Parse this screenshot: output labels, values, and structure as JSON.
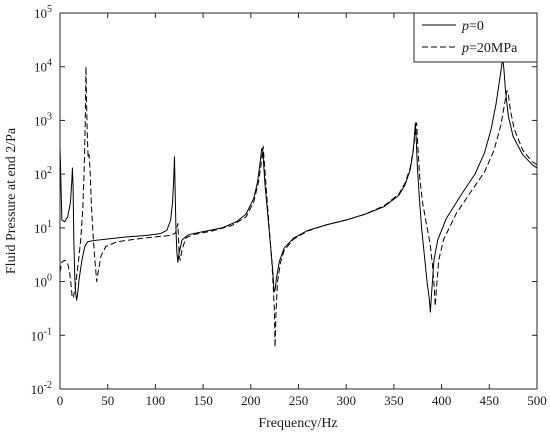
{
  "chart_data": {
    "type": "line",
    "xlabel": "Frequency/Hz",
    "ylabel": "Fluid Pressure at end 2/Pa",
    "xlim": [
      0,
      500
    ],
    "ylim": [
      0.01,
      100000
    ],
    "yscale": "log",
    "grid": false,
    "legend_position": "top-right",
    "x_ticks": [
      0,
      50,
      100,
      150,
      200,
      250,
      300,
      350,
      400,
      450,
      500
    ],
    "y_ticks": [
      {
        "value": 0.01,
        "base": "10",
        "exp": "-2"
      },
      {
        "value": 0.1,
        "base": "10",
        "exp": "-1"
      },
      {
        "value": 1,
        "base": "10",
        "exp": "0"
      },
      {
        "value": 10,
        "base": "10",
        "exp": "1"
      },
      {
        "value": 100,
        "base": "10",
        "exp": "2"
      },
      {
        "value": 1000,
        "base": "10",
        "exp": "3"
      },
      {
        "value": 10000,
        "base": "10",
        "exp": "4"
      },
      {
        "value": 100000,
        "base": "10",
        "exp": "5"
      }
    ],
    "series": [
      {
        "name_var": "p",
        "name_rest": "=0",
        "style": "solid",
        "color": "#000000",
        "points": [
          [
            0,
            300
          ],
          [
            2,
            14
          ],
          [
            5,
            13
          ],
          [
            8,
            16
          ],
          [
            11,
            30
          ],
          [
            12.5,
            80
          ],
          [
            13,
            130
          ],
          [
            13.7,
            60
          ],
          [
            14.5,
            6
          ],
          [
            15.5,
            1.2
          ],
          [
            16.5,
            0.6
          ],
          [
            17.5,
            0.45
          ],
          [
            18.5,
            0.6
          ],
          [
            20,
            1.1
          ],
          [
            23,
            2.5
          ],
          [
            26,
            4.5
          ],
          [
            29,
            5.5
          ],
          [
            35,
            5.8
          ],
          [
            50,
            6.2
          ],
          [
            70,
            6.8
          ],
          [
            90,
            7.2
          ],
          [
            105,
            7.8
          ],
          [
            112,
            9
          ],
          [
            116,
            14
          ],
          [
            118,
            30
          ],
          [
            119.2,
            80
          ],
          [
            120,
            210
          ],
          [
            120.6,
            60
          ],
          [
            121.5,
            10
          ],
          [
            122.5,
            3.5
          ],
          [
            123.5,
            2.3
          ],
          [
            125,
            3.5
          ],
          [
            128,
            6
          ],
          [
            135,
            7.5
          ],
          [
            150,
            8.5
          ],
          [
            170,
            10
          ],
          [
            185,
            13
          ],
          [
            195,
            18
          ],
          [
            203,
            35
          ],
          [
            207,
            70
          ],
          [
            209.5,
            150
          ],
          [
            211.5,
            300
          ],
          [
            212.5,
            280
          ],
          [
            213.5,
            150
          ],
          [
            215,
            60
          ],
          [
            217,
            25
          ],
          [
            219,
            10
          ],
          [
            221,
            4
          ],
          [
            223,
            1.6
          ],
          [
            224.5,
            0.65
          ],
          [
            225.5,
            0.7
          ],
          [
            227,
            1.2
          ],
          [
            230,
            2.4
          ],
          [
            235,
            4.2
          ],
          [
            245,
            6.5
          ],
          [
            260,
            9
          ],
          [
            280,
            11.5
          ],
          [
            300,
            14
          ],
          [
            320,
            18
          ],
          [
            340,
            25
          ],
          [
            355,
            40
          ],
          [
            362,
            65
          ],
          [
            367,
            120
          ],
          [
            370,
            250
          ],
          [
            371.5,
            500
          ],
          [
            372.5,
            900
          ],
          [
            373.3,
            500
          ],
          [
            374.5,
            150
          ],
          [
            376.5,
            40
          ],
          [
            379,
            10
          ],
          [
            382,
            3
          ],
          [
            385,
            0.9
          ],
          [
            387,
            0.5
          ],
          [
            388.2,
            0.27
          ],
          [
            389.5,
            0.6
          ],
          [
            392,
            2.5
          ],
          [
            396,
            6
          ],
          [
            405,
            15
          ],
          [
            420,
            40
          ],
          [
            435,
            100
          ],
          [
            445,
            250
          ],
          [
            452,
            700
          ],
          [
            457,
            2000
          ],
          [
            461,
            6000
          ],
          [
            464,
            14000
          ],
          [
            465.3,
            9000
          ],
          [
            467,
            3500
          ],
          [
            470,
            1200
          ],
          [
            475,
            500
          ],
          [
            485,
            230
          ],
          [
            495,
            150
          ],
          [
            500,
            130
          ]
        ]
      },
      {
        "name_var": "p",
        "name_rest": "=20MPa",
        "style": "dashed",
        "color": "#000000",
        "points": [
          [
            0,
            1.5
          ],
          [
            2,
            2.3
          ],
          [
            5,
            2.5
          ],
          [
            8,
            2.2
          ],
          [
            10,
            1.5
          ],
          [
            11.5,
            0.9
          ],
          [
            12.8,
            0.5
          ],
          [
            14,
            0.5
          ],
          [
            16,
            0.8
          ],
          [
            18,
            1.5
          ],
          [
            20,
            3
          ],
          [
            22,
            7
          ],
          [
            24,
            25
          ],
          [
            25.5,
            150
          ],
          [
            26.5,
            1000
          ],
          [
            27.2,
            10000
          ],
          [
            27.7,
            3000
          ],
          [
            28.5,
            600
          ],
          [
            29.5,
            200
          ],
          [
            30.5,
            230
          ],
          [
            31.5,
            120
          ],
          [
            33,
            25
          ],
          [
            35,
            6
          ],
          [
            37,
            2
          ],
          [
            38.5,
            1
          ],
          [
            40,
            1.5
          ],
          [
            43,
            3
          ],
          [
            48,
            4.5
          ],
          [
            60,
            5.5
          ],
          [
            80,
            6.2
          ],
          [
            100,
            6.8
          ],
          [
            115,
            7.2
          ],
          [
            118,
            7.5
          ],
          [
            121,
            8
          ],
          [
            122.5,
            10
          ],
          [
            123.5,
            12
          ],
          [
            124.3,
            6
          ],
          [
            125,
            3
          ],
          [
            126,
            2.5
          ],
          [
            128,
            4
          ],
          [
            132,
            6.5
          ],
          [
            140,
            7.5
          ],
          [
            160,
            8.8
          ],
          [
            180,
            11
          ],
          [
            195,
            16
          ],
          [
            203,
            30
          ],
          [
            208,
            70
          ],
          [
            211,
            160
          ],
          [
            213,
            330
          ],
          [
            214,
            180
          ],
          [
            216,
            60
          ],
          [
            218,
            20
          ],
          [
            220,
            7
          ],
          [
            222,
            2.5
          ],
          [
            223.5,
            0.8
          ],
          [
            224.7,
            0.3
          ],
          [
            225.4,
            0.06
          ],
          [
            226.5,
            0.3
          ],
          [
            228,
            1
          ],
          [
            231,
            2.2
          ],
          [
            235,
            3.8
          ],
          [
            245,
            6.2
          ],
          [
            260,
            8.8
          ],
          [
            280,
            11.5
          ],
          [
            300,
            14
          ],
          [
            320,
            18
          ],
          [
            340,
            26
          ],
          [
            355,
            42
          ],
          [
            362,
            70
          ],
          [
            367,
            130
          ],
          [
            370.5,
            300
          ],
          [
            372.5,
            600
          ],
          [
            373.8,
            900
          ],
          [
            375,
            350
          ],
          [
            377,
            90
          ],
          [
            380,
            30
          ],
          [
            384,
            12
          ],
          [
            388,
            5
          ],
          [
            390.5,
            2
          ],
          [
            392.5,
            0.7
          ],
          [
            393.3,
            0.35
          ],
          [
            394.5,
            0.7
          ],
          [
            397,
            2.5
          ],
          [
            402,
            6
          ],
          [
            415,
            18
          ],
          [
            430,
            45
          ],
          [
            445,
            110
          ],
          [
            455,
            280
          ],
          [
            462,
            800
          ],
          [
            466,
            2000
          ],
          [
            468.5,
            3600
          ],
          [
            470,
            3000
          ],
          [
            472,
            1600
          ],
          [
            476,
            700
          ],
          [
            485,
            280
          ],
          [
            495,
            170
          ],
          [
            500,
            150
          ]
        ]
      }
    ]
  }
}
